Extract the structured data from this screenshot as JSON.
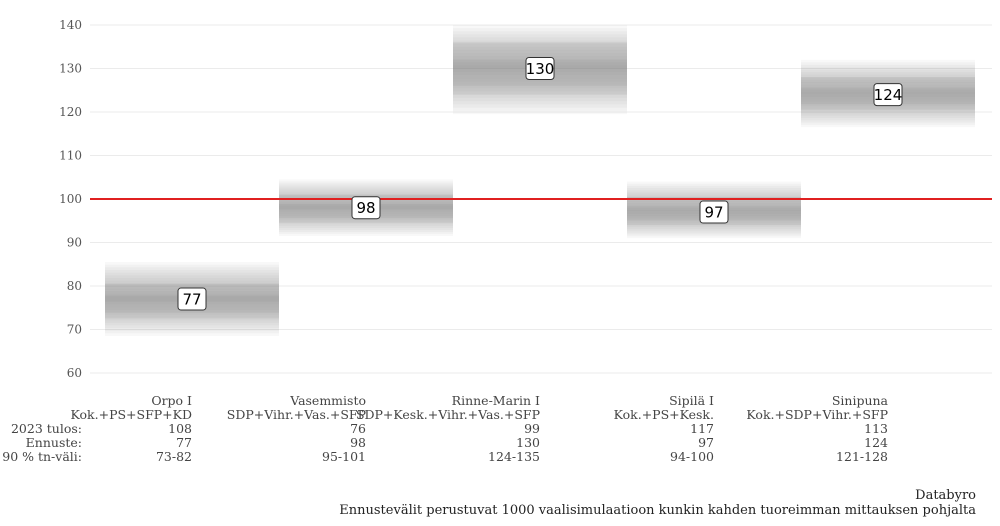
{
  "chart_data": {
    "type": "bar",
    "ylim": [
      57,
      143
    ],
    "yticks": [
      60,
      70,
      80,
      90,
      100,
      110,
      120,
      130,
      140
    ],
    "reference_line": {
      "value": 100,
      "color": "#e02020"
    },
    "categories": [
      {
        "name": "Orpo I",
        "parties": "Kok.+PS+SFP+KD",
        "result_2023": "108",
        "forecast": 77,
        "interval_text": "73-82",
        "band": [
          68.5,
          85.5
        ],
        "dark": [
          72.5,
          80.5
        ]
      },
      {
        "name": "Vasemmisto",
        "parties": "SDP+Vihr.+Vas.+SFP",
        "result_2023": "76",
        "forecast": 98,
        "interval_text": "95-101",
        "band": [
          91.5,
          104.5
        ],
        "dark": [
          94.5,
          101
        ]
      },
      {
        "name": "Rinne-Marin I",
        "parties": "SDP+Kesk.+Vihr.+Vas.+SFP",
        "result_2023": "99",
        "forecast": 130,
        "interval_text": "124-135",
        "band": [
          119.5,
          140
        ],
        "dark": [
          124,
          136
        ]
      },
      {
        "name": "Sipilä I",
        "parties": "Kok.+PS+Kesk.",
        "result_2023": "117",
        "forecast": 97,
        "interval_text": "94-100",
        "band": [
          91,
          104
        ],
        "dark": [
          94,
          100.5
        ]
      },
      {
        "name": "Sinipuna",
        "parties": "Kok.+SDP+Vihr.+SFP",
        "result_2023": "113",
        "forecast": 124,
        "interval_text": "121-128",
        "band": [
          116.5,
          132
        ],
        "dark": [
          120.5,
          128
        ]
      }
    ],
    "row_labels": [
      "2023 tulos:",
      "Ennuste:",
      "90 % tn-väli:"
    ],
    "band_color": "#7a7a7a",
    "grid": true
  },
  "credit": {
    "source": "Databyro",
    "note": "Ennustevälit perustuvat 1000 vaalisimulaatioon kunkin kahden tuoreimman mittauksen pohjalta"
  }
}
